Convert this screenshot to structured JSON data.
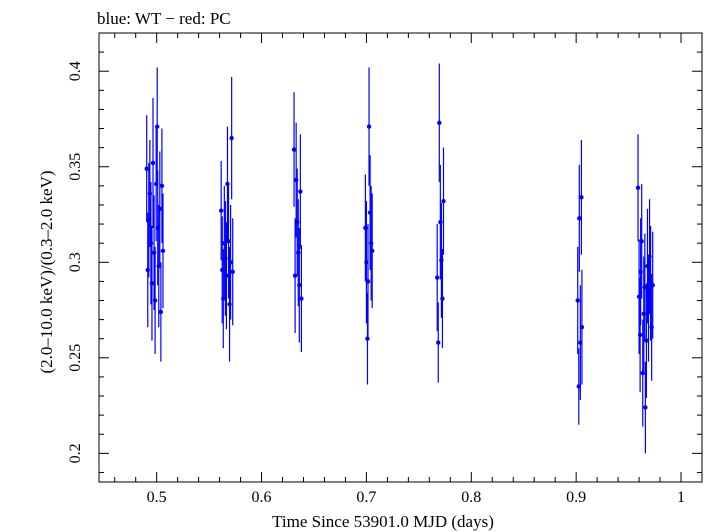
{
  "chart_data": {
    "type": "scatter",
    "title": "blue: WT − red: PC",
    "xlabel": "Time Since 53901.0 MJD (days)",
    "ylabel": "(2.0–10.0 keV)/(0.3–2.0 keV)",
    "xlim": [
      0.445,
      1.02
    ],
    "ylim": [
      0.185,
      0.42
    ],
    "x_ticks": [
      0.5,
      0.6,
      0.7,
      0.8,
      0.9,
      1.0
    ],
    "x_tick_labels": [
      "0.5",
      "0.6",
      "0.7",
      "0.8",
      "0.9",
      "1"
    ],
    "y_ticks": [
      0.2,
      0.25,
      0.3,
      0.35,
      0.4
    ],
    "y_tick_labels": [
      "0.2",
      "0.25",
      "0.3",
      "0.35",
      "0.4"
    ],
    "grid": false,
    "legend": "none",
    "series": [
      {
        "name": "WT",
        "color": "#0000ff",
        "points": [
          [
            0.4905,
            0.349,
            0.028
          ],
          [
            0.4915,
            0.296,
            0.03
          ],
          [
            0.4925,
            0.322,
            0.03
          ],
          [
            0.4935,
            0.336,
            0.028
          ],
          [
            0.4945,
            0.31,
            0.032
          ],
          [
            0.4955,
            0.289,
            0.03
          ],
          [
            0.4965,
            0.352,
            0.034
          ],
          [
            0.4975,
            0.305,
            0.03
          ],
          [
            0.4985,
            0.28,
            0.028
          ],
          [
            0.4995,
            0.341,
            0.03
          ],
          [
            0.5005,
            0.371,
            0.031
          ],
          [
            0.501,
            0.318,
            0.03
          ],
          [
            0.502,
            0.298,
            0.032
          ],
          [
            0.503,
            0.328,
            0.03
          ],
          [
            0.504,
            0.274,
            0.026
          ],
          [
            0.505,
            0.34,
            0.03
          ],
          [
            0.506,
            0.306,
            0.03
          ],
          [
            0.5615,
            0.327,
            0.026
          ],
          [
            0.5625,
            0.296,
            0.028
          ],
          [
            0.5635,
            0.281,
            0.026
          ],
          [
            0.5645,
            0.31,
            0.03
          ],
          [
            0.5655,
            0.302,
            0.03
          ],
          [
            0.5665,
            0.293,
            0.028
          ],
          [
            0.5675,
            0.341,
            0.03
          ],
          [
            0.5685,
            0.311,
            0.03
          ],
          [
            0.5695,
            0.278,
            0.03
          ],
          [
            0.5705,
            0.3,
            0.03
          ],
          [
            0.5715,
            0.365,
            0.032
          ],
          [
            0.5725,
            0.295,
            0.028
          ],
          [
            0.631,
            0.359,
            0.03
          ],
          [
            0.632,
            0.293,
            0.03
          ],
          [
            0.633,
            0.343,
            0.03
          ],
          [
            0.634,
            0.321,
            0.028
          ],
          [
            0.635,
            0.305,
            0.028
          ],
          [
            0.636,
            0.288,
            0.03
          ],
          [
            0.637,
            0.337,
            0.03
          ],
          [
            0.638,
            0.281,
            0.028
          ],
          [
            0.699,
            0.318,
            0.028
          ],
          [
            0.7,
            0.3,
            0.032
          ],
          [
            0.701,
            0.26,
            0.024
          ],
          [
            0.7015,
            0.29,
            0.03
          ],
          [
            0.7025,
            0.371,
            0.031
          ],
          [
            0.7035,
            0.326,
            0.03
          ],
          [
            0.7045,
            0.31,
            0.03
          ],
          [
            0.7055,
            0.306,
            0.03
          ],
          [
            0.7675,
            0.292,
            0.028
          ],
          [
            0.7685,
            0.258,
            0.021
          ],
          [
            0.7695,
            0.373,
            0.031
          ],
          [
            0.7705,
            0.321,
            0.03
          ],
          [
            0.7715,
            0.301,
            0.03
          ],
          [
            0.7725,
            0.281,
            0.026
          ],
          [
            0.7735,
            0.332,
            0.028
          ],
          [
            0.9015,
            0.28,
            0.028
          ],
          [
            0.9025,
            0.235,
            0.02
          ],
          [
            0.903,
            0.323,
            0.028
          ],
          [
            0.904,
            0.258,
            0.03
          ],
          [
            0.905,
            0.334,
            0.03
          ],
          [
            0.9055,
            0.266,
            0.03
          ],
          [
            0.959,
            0.339,
            0.028
          ],
          [
            0.96,
            0.282,
            0.03
          ],
          [
            0.961,
            0.262,
            0.03
          ],
          [
            0.9615,
            0.295,
            0.028
          ],
          [
            0.9625,
            0.311,
            0.03
          ],
          [
            0.9635,
            0.242,
            0.028
          ],
          [
            0.9645,
            0.273,
            0.03
          ],
          [
            0.9655,
            0.287,
            0.028
          ],
          [
            0.966,
            0.224,
            0.024
          ],
          [
            0.967,
            0.259,
            0.03
          ],
          [
            0.968,
            0.298,
            0.03
          ],
          [
            0.969,
            0.276,
            0.028
          ],
          [
            0.97,
            0.303,
            0.03
          ],
          [
            0.971,
            0.289,
            0.03
          ],
          [
            0.972,
            0.266,
            0.028
          ],
          [
            0.973,
            0.288,
            0.028
          ]
        ]
      }
    ]
  }
}
